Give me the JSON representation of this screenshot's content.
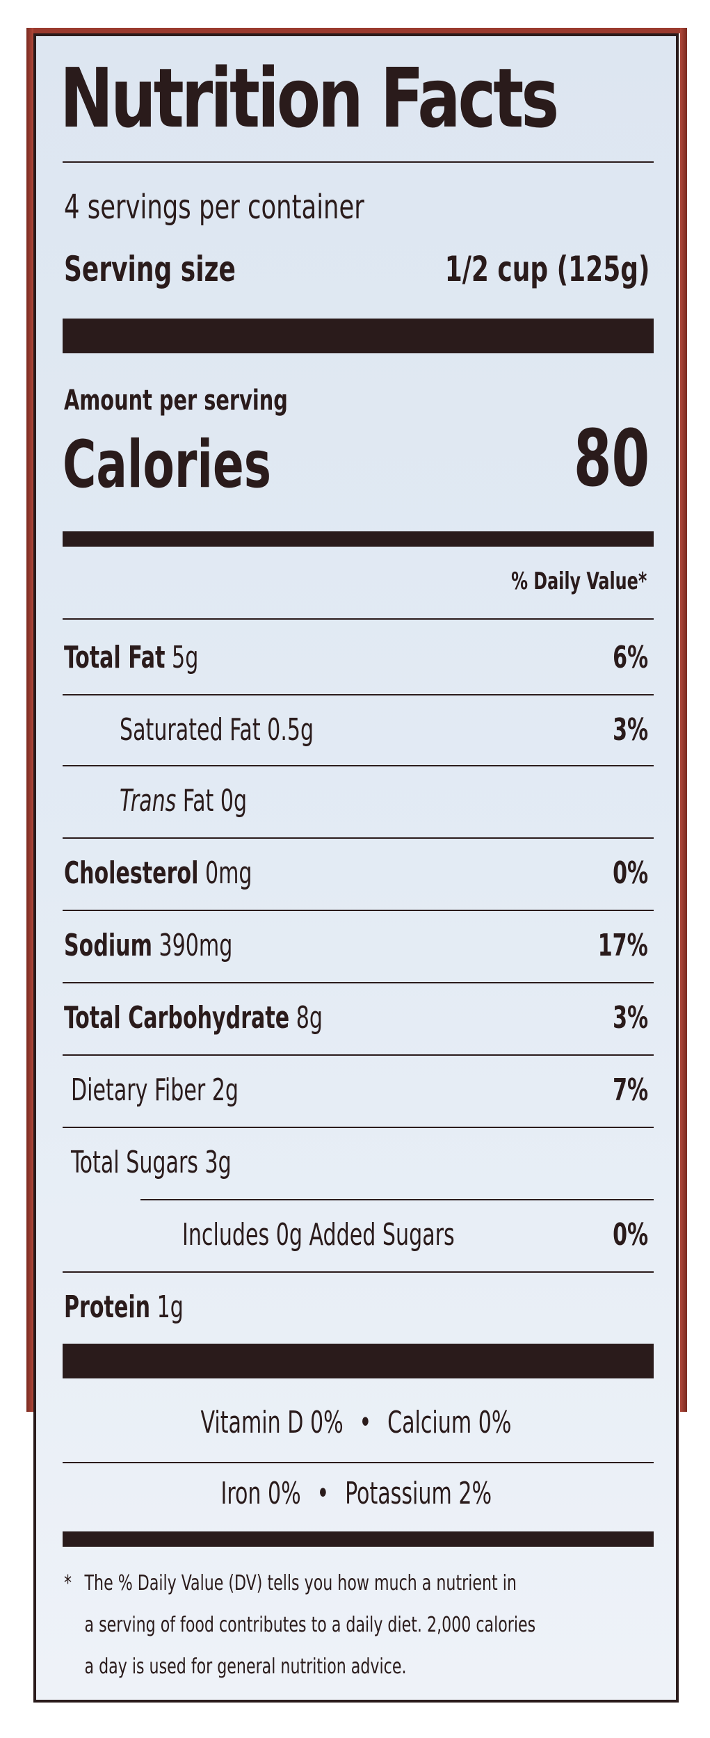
{
  "label": {
    "title": "Nutrition Facts",
    "servings_per_container": "4 servings per container",
    "serving_size_label": "Serving size",
    "serving_size_value": "1/2 cup (125g)",
    "amount_per_serving": "Amount per serving",
    "calories_label": "Calories",
    "calories_value": "80",
    "daily_value_header": "% Daily Value*"
  },
  "nutrients": {
    "total_fat": {
      "name": "Total Fat",
      "amount": "5g",
      "dv": "6%"
    },
    "saturated_fat": {
      "name": "Saturated Fat",
      "amount": "0.5g",
      "dv": "3%"
    },
    "trans_fat": {
      "name_italic": "Trans",
      "name": "Fat",
      "amount": "0g"
    },
    "cholesterol": {
      "name": "Cholesterol",
      "amount": "0mg",
      "dv": "0%"
    },
    "sodium": {
      "name": "Sodium",
      "amount": "390mg",
      "dv": "17%"
    },
    "total_carbohydrate": {
      "name": "Total Carbohydrate",
      "amount": "8g",
      "dv": "3%"
    },
    "dietary_fiber": {
      "name": "Dietary Fiber",
      "amount": "2g",
      "dv": "7%"
    },
    "total_sugars": {
      "name": "Total Sugars",
      "amount": "3g"
    },
    "added_sugars": {
      "name": "Includes 0g Added Sugars",
      "dv": "0%"
    },
    "protein": {
      "name": "Protein",
      "amount": "1g"
    }
  },
  "micronutrients": {
    "vitamin_d": "Vitamin D 0%",
    "calcium": "Calcium 0%",
    "iron": "Iron 0%",
    "potassium": "Potassium 2%",
    "separator": "•"
  },
  "footnote": {
    "star": "*",
    "line1": "The % Daily Value (DV) tells you how much a nutrient in",
    "line2": "a serving of food contributes to a daily diet. 2,000 calories",
    "line3": "a day is used for general nutrition advice."
  }
}
